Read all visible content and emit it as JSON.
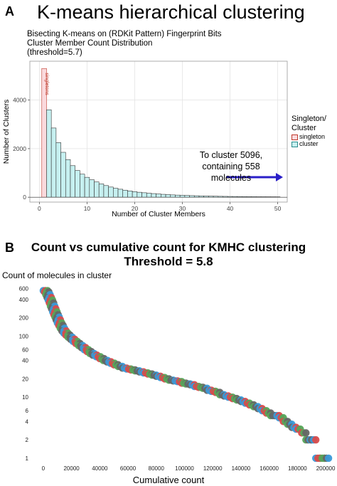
{
  "panel_a": {
    "panel_label": "A",
    "title": "K-means hierarchical clustering"
  },
  "panel_b": {
    "panel_label": "B",
    "title_line1": "Count vs cumulative count for KMHC clustering",
    "title_line2": "Threshold = 5.8"
  },
  "colors": {
    "singleton_fill": "#fadadd",
    "cluster_fill": "#c6f0f0",
    "arrow": "#2a1fc8",
    "scatter": [
      "#3a9ad9",
      "#d94b4b",
      "#55a65a",
      "#666666"
    ]
  },
  "chart_data": [
    {
      "type": "bar",
      "subtitle_lines": [
        "Bisecting K-means on (RDKit Pattern) Fingerprint Bits",
        "Cluster Member Count Distribution",
        "(threshold=5.7)"
      ],
      "xlabel": "Number of Cluster Members",
      "ylabel": "Number of Clusters",
      "xlim": [
        -2,
        52
      ],
      "ylim": [
        -200,
        5600
      ],
      "xticks": [
        0,
        10,
        20,
        30,
        40,
        50
      ],
      "yticks": [
        0,
        2000,
        4000
      ],
      "grid": true,
      "bar_label": "singletons",
      "x": [
        1,
        2,
        3,
        4,
        5,
        6,
        7,
        8,
        9,
        10,
        11,
        12,
        13,
        14,
        15,
        16,
        17,
        18,
        19,
        20,
        21,
        22,
        23,
        24,
        25,
        26,
        27,
        28,
        29,
        30,
        31,
        32,
        33,
        34,
        35,
        36,
        37,
        38,
        39,
        40,
        41,
        42,
        43,
        44,
        45,
        46,
        47,
        48,
        49,
        50
      ],
      "series": [
        {
          "name": "singleton",
          "values": [
            5300,
            0,
            0,
            0,
            0,
            0,
            0,
            0,
            0,
            0,
            0,
            0,
            0,
            0,
            0,
            0,
            0,
            0,
            0,
            0,
            0,
            0,
            0,
            0,
            0,
            0,
            0,
            0,
            0,
            0,
            0,
            0,
            0,
            0,
            0,
            0,
            0,
            0,
            0,
            0,
            0,
            0,
            0,
            0,
            0,
            0,
            0,
            0,
            0,
            0
          ]
        },
        {
          "name": "cluster",
          "values": [
            0,
            3600,
            2850,
            2250,
            1850,
            1550,
            1300,
            1100,
            950,
            820,
            720,
            630,
            550,
            480,
            420,
            370,
            330,
            290,
            260,
            230,
            205,
            185,
            165,
            150,
            135,
            120,
            108,
            97,
            88,
            80,
            73,
            66,
            60,
            55,
            50,
            46,
            42,
            38,
            35,
            32,
            30,
            28,
            26,
            24,
            22,
            20,
            19,
            18,
            17,
            16
          ]
        }
      ],
      "legend": {
        "title": "Singleton/ Cluster",
        "placement": "right",
        "entries": [
          "singleton",
          "cluster"
        ]
      },
      "annotation": "To cluster 5096, containing 558 molecules"
    },
    {
      "type": "scatter",
      "xlabel": "Cumulative count",
      "ylabel": "Count of molecules in cluster",
      "xlim": [
        -8000,
        206000
      ],
      "ylim": [
        0.85,
        700
      ],
      "yscale": "log",
      "xticks": [
        0,
        20000,
        40000,
        60000,
        80000,
        100000,
        120000,
        140000,
        160000,
        180000,
        200000
      ],
      "yticks": [
        1,
        2,
        4,
        6,
        10,
        20,
        40,
        60,
        100,
        200,
        400,
        600
      ],
      "grid": false,
      "points": [
        [
          0,
          558
        ],
        [
          900,
          530
        ],
        [
          1800,
          480
        ],
        [
          2700,
          430
        ],
        [
          3500,
          390
        ],
        [
          4300,
          350
        ],
        [
          5100,
          310
        ],
        [
          5900,
          280
        ],
        [
          6700,
          250
        ],
        [
          7500,
          225
        ],
        [
          8300,
          205
        ],
        [
          9100,
          185
        ],
        [
          10000,
          165
        ],
        [
          11000,
          150
        ],
        [
          12000,
          135
        ],
        [
          13200,
          122
        ],
        [
          14500,
          112
        ],
        [
          16000,
          104
        ],
        [
          17600,
          96
        ],
        [
          19300,
          89
        ],
        [
          21100,
          82
        ],
        [
          23000,
          76
        ],
        [
          25000,
          70
        ],
        [
          27000,
          65
        ],
        [
          29000,
          60
        ],
        [
          31000,
          56
        ],
        [
          33000,
          52
        ],
        [
          35000,
          49
        ],
        [
          37500,
          46
        ],
        [
          40000,
          43
        ],
        [
          42500,
          40
        ],
        [
          45000,
          38
        ],
        [
          47500,
          36
        ],
        [
          50000,
          34
        ],
        [
          53000,
          32
        ],
        [
          56000,
          30
        ],
        [
          59000,
          29
        ],
        [
          62000,
          28
        ],
        [
          65000,
          27
        ],
        [
          68000,
          26
        ],
        [
          71000,
          25
        ],
        [
          74000,
          24
        ],
        [
          77000,
          23
        ],
        [
          80000,
          22
        ],
        [
          83000,
          21
        ],
        [
          86000,
          20
        ],
        [
          89000,
          19
        ],
        [
          92000,
          18.5
        ],
        [
          95000,
          18
        ],
        [
          98000,
          17
        ],
        [
          101000,
          16.5
        ],
        [
          104000,
          16
        ],
        [
          107000,
          15
        ],
        [
          110000,
          14.5
        ],
        [
          113000,
          14
        ],
        [
          116000,
          13
        ],
        [
          119000,
          12.5
        ],
        [
          122000,
          12
        ],
        [
          125000,
          11
        ],
        [
          128000,
          10.5
        ],
        [
          131000,
          10
        ],
        [
          134000,
          9.5
        ],
        [
          137000,
          9
        ],
        [
          140000,
          8.5
        ],
        [
          143000,
          8
        ],
        [
          146000,
          7.5
        ],
        [
          149000,
          7
        ],
        [
          152000,
          6.5
        ],
        [
          155000,
          6
        ],
        [
          158000,
          5.5
        ],
        [
          161000,
          5
        ],
        [
          164000,
          5
        ],
        [
          167000,
          4.6
        ],
        [
          170000,
          4
        ],
        [
          173000,
          3.6
        ],
        [
          176000,
          3.2
        ],
        [
          179000,
          3
        ],
        [
          183000,
          2.6
        ],
        [
          186000,
          2
        ],
        [
          190000,
          2
        ],
        [
          193000,
          1
        ],
        [
          196000,
          1
        ],
        [
          199000,
          1
        ]
      ]
    }
  ]
}
